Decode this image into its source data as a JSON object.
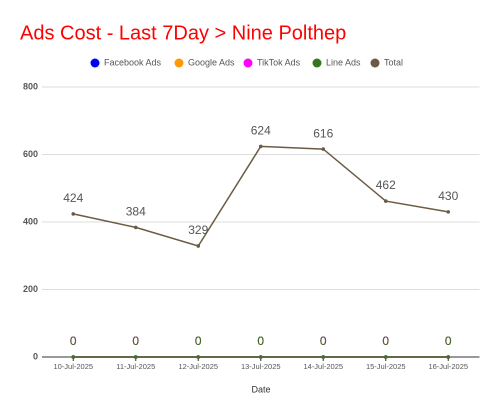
{
  "chart_data": {
    "type": "line",
    "title": "Ads Cost - Last 7Day > Nine Polthep",
    "x_label": "Date",
    "categories": [
      "10-Jul-2025",
      "11-Jul-2025",
      "12-Jul-2025",
      "13-Jul-2025",
      "14-Jul-2025",
      "15-Jul-2025",
      "16-Jul-2025"
    ],
    "series": [
      {
        "name": "Facebook Ads",
        "color": "#0000ff",
        "values": [
          0,
          0,
          0,
          0,
          0,
          0,
          0
        ]
      },
      {
        "name": "Google Ads",
        "color": "#ff9900",
        "values": [
          0,
          0,
          0,
          0,
          0,
          0,
          0
        ]
      },
      {
        "name": "TikTok Ads",
        "color": "#ff00ff",
        "values": [
          0,
          0,
          0,
          0,
          0,
          0,
          0
        ]
      },
      {
        "name": "Line Ads",
        "color": "#38761d",
        "values": [
          0,
          0,
          0,
          0,
          0,
          0,
          0
        ]
      },
      {
        "name": "Total",
        "color": "#6b5b45",
        "values": [
          424,
          384,
          329,
          624,
          616,
          462,
          430
        ]
      }
    ],
    "ylim": [
      0,
      800
    ],
    "yticks": [
      0,
      200,
      400,
      600,
      800
    ],
    "grid": true,
    "legend": "top"
  }
}
